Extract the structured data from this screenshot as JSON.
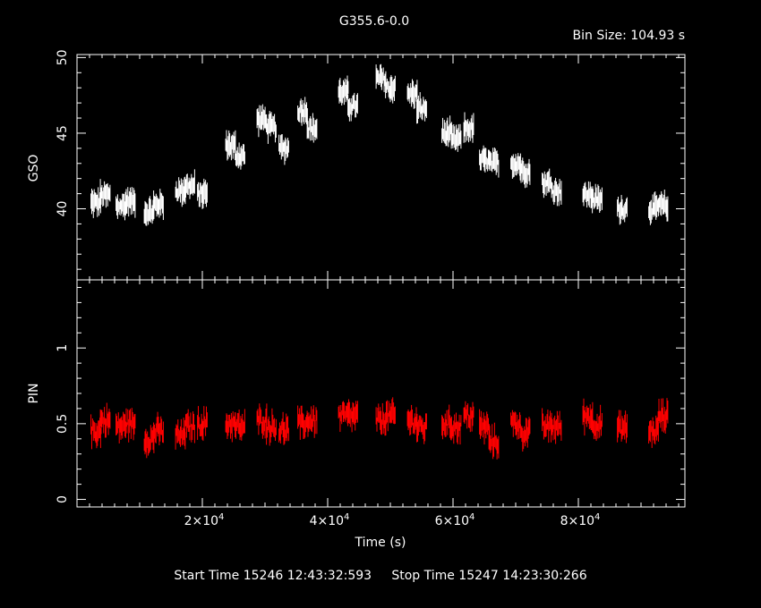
{
  "chart_data": [
    {
      "type": "scatter",
      "title": "G355.6-0.0",
      "subtitle": "Bin Size: 104.93 s",
      "xlabel": "",
      "ylabel": "GSO",
      "xlim": [
        0,
        97000
      ],
      "ylim": [
        35.3,
        50.2
      ],
      "yticks": [
        40,
        45,
        50
      ],
      "color": "#ffffff",
      "series": [
        {
          "x": [
            3000,
            4500,
            7000,
            8500,
            11500,
            13000,
            16500,
            18000,
            20000,
            24500,
            26000,
            29500,
            31000,
            33000,
            36000,
            37500,
            42500,
            44000,
            48500,
            50000,
            53500,
            55000,
            59000,
            60500,
            62500,
            65000,
            66500,
            70000,
            71500,
            75000,
            76500,
            81500,
            83000,
            87000,
            92000,
            93500
          ],
          "y": [
            40.4,
            40.9,
            40.2,
            40.5,
            39.8,
            40.3,
            41.2,
            41.5,
            41.0,
            44.2,
            43.5,
            45.9,
            45.4,
            44.0,
            46.5,
            45.3,
            47.7,
            46.8,
            48.6,
            48.0,
            47.6,
            46.6,
            45.0,
            44.6,
            45.3,
            43.2,
            43.0,
            43.0,
            42.5,
            41.7,
            41.2,
            40.9,
            40.6,
            40.0,
            40.0,
            40.2
          ]
        }
      ]
    },
    {
      "type": "scatter",
      "xlabel": "Time (s)",
      "ylabel": "PIN",
      "xlim": [
        0,
        97000
      ],
      "ylim": [
        -0.05,
        1.45
      ],
      "yticks": [
        0,
        0.5,
        1
      ],
      "ytick_labels": [
        "0",
        "0.5",
        "1"
      ],
      "xticks": [
        20000,
        40000,
        60000,
        80000
      ],
      "xtick_mantissa": [
        "2×10",
        "4×10",
        "6×10",
        "8×10"
      ],
      "xtick_exponent": "4",
      "color": "#ff0000",
      "series": [
        {
          "x": [
            3000,
            4500,
            7000,
            8500,
            11500,
            13000,
            16500,
            18000,
            20000,
            24500,
            26000,
            29500,
            31000,
            33000,
            36000,
            37500,
            42500,
            44000,
            48500,
            50000,
            53500,
            55000,
            59000,
            60500,
            62500,
            65000,
            66500,
            70000,
            71500,
            75000,
            76500,
            81500,
            83000,
            87000,
            92000,
            93500
          ],
          "y": [
            0.45,
            0.52,
            0.48,
            0.5,
            0.4,
            0.45,
            0.42,
            0.48,
            0.5,
            0.5,
            0.48,
            0.52,
            0.48,
            0.46,
            0.5,
            0.52,
            0.55,
            0.55,
            0.52,
            0.55,
            0.52,
            0.47,
            0.5,
            0.48,
            0.55,
            0.48,
            0.38,
            0.5,
            0.44,
            0.48,
            0.48,
            0.55,
            0.5,
            0.47,
            0.45,
            0.55
          ]
        }
      ]
    }
  ],
  "footer": {
    "start": "Start Time 15246 12:43:32:593",
    "stop": "Stop Time 15247 14:23:30:266"
  }
}
